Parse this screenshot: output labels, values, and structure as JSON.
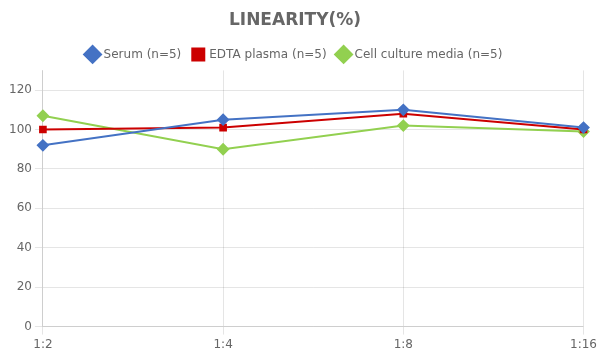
{
  "chart_data": {
    "type": "line",
    "title": "LINEARITY(%)",
    "categories": [
      "1:2",
      "1:4",
      "1:8",
      "1:16"
    ],
    "series": [
      {
        "name": "Serum (n=5)",
        "color": "#4472C4",
        "marker": "diamond",
        "values": [
          92,
          105,
          110,
          101
        ]
      },
      {
        "name": "EDTA plasma (n=5)",
        "color": "#CC0000",
        "marker": "square",
        "values": [
          100,
          101,
          108,
          100
        ]
      },
      {
        "name": "Cell culture media (n=5)",
        "color": "#92D050",
        "marker": "diamond",
        "values": [
          107,
          90,
          102,
          99
        ]
      }
    ],
    "ylim": [
      0,
      130
    ],
    "yticks": [
      0,
      20,
      40,
      60,
      80,
      100,
      120
    ],
    "grid": true,
    "legend": "top"
  }
}
